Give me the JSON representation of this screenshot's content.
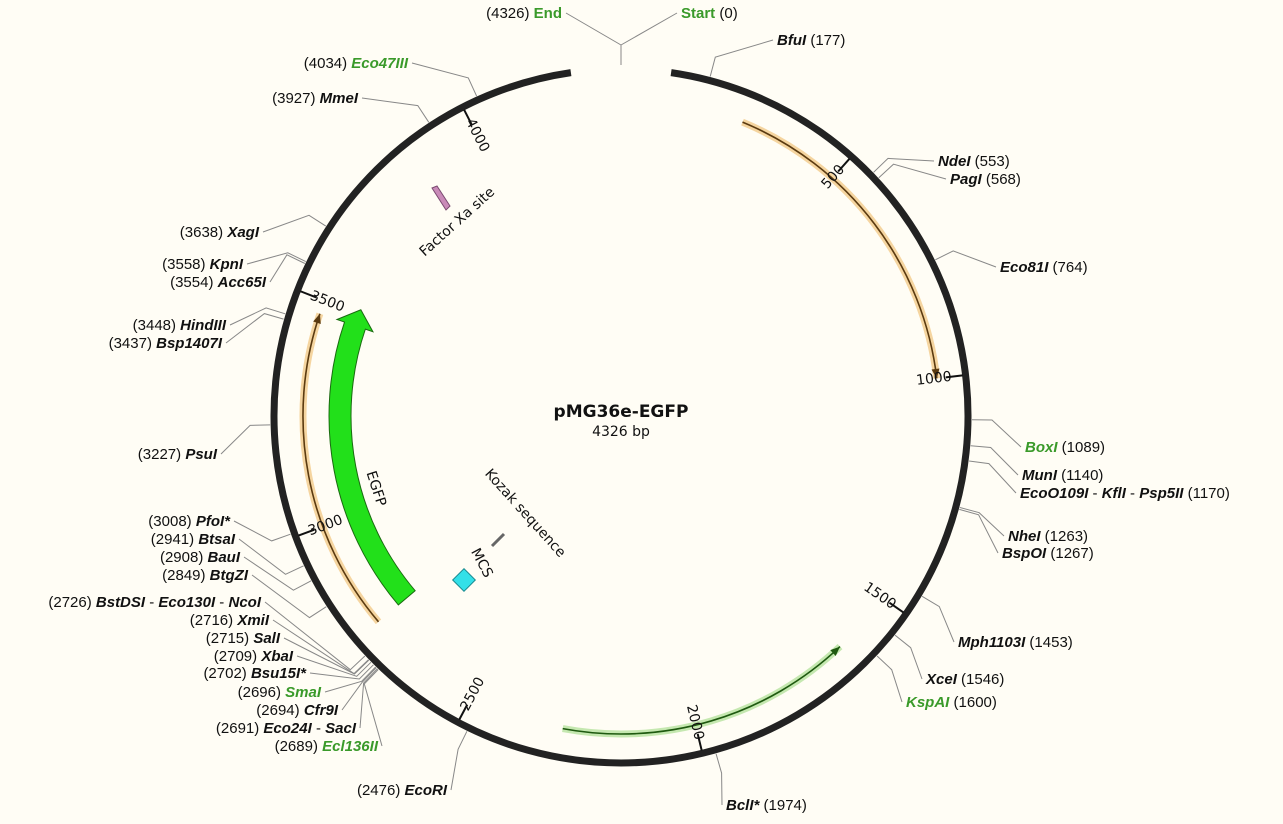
{
  "map": {
    "name": "pMG36e-EGFP",
    "length_label": "4326 bp",
    "length": 4326
  },
  "colors": {
    "backbone": "#222222",
    "green_label": "#3a9a2a",
    "orange_arrow": "#e8a43a",
    "light_green_arrow": "#8bd36b",
    "egfp": "#22e01a",
    "mcs": "#33e0e8",
    "factor_xa": "#c98ab8"
  },
  "ticks": [
    {
      "pos": 500,
      "label": "500"
    },
    {
      "pos": 1000,
      "label": "1000"
    },
    {
      "pos": 1500,
      "label": "1500"
    },
    {
      "pos": 2000,
      "label": "2000"
    },
    {
      "pos": 2500,
      "label": "2500"
    },
    {
      "pos": 3000,
      "label": "3000"
    },
    {
      "pos": 3500,
      "label": "3500"
    },
    {
      "pos": 4000,
      "label": "4000"
    }
  ],
  "sites": [
    {
      "bp": 4326,
      "pos_text": "(4326)",
      "parts": [
        {
          "t": "End",
          "g": true,
          "plain": true
        }
      ],
      "side": "L"
    },
    {
      "bp": 0,
      "pos_text": "(0)",
      "parts": [
        {
          "t": "Start",
          "g": true,
          "plain": true
        }
      ],
      "side": "R"
    },
    {
      "bp": 177,
      "pos_text": "(177)",
      "parts": [
        {
          "t": "BfuI"
        }
      ],
      "side": "R"
    },
    {
      "bp": 553,
      "pos_text": "(553)",
      "parts": [
        {
          "t": "NdeI"
        }
      ],
      "side": "R"
    },
    {
      "bp": 568,
      "pos_text": "(568)",
      "parts": [
        {
          "t": "PagI"
        }
      ],
      "side": "R"
    },
    {
      "bp": 764,
      "pos_text": "(764)",
      "parts": [
        {
          "t": "Eco81I"
        }
      ],
      "side": "R"
    },
    {
      "bp": 1089,
      "pos_text": "(1089)",
      "parts": [
        {
          "t": "BoxI",
          "g": true
        }
      ],
      "side": "R"
    },
    {
      "bp": 1140,
      "pos_text": "(1140)",
      "parts": [
        {
          "t": "MunI"
        }
      ],
      "side": "R"
    },
    {
      "bp": 1170,
      "pos_text": "(1170)",
      "parts": [
        {
          "t": "EcoO109I"
        },
        {
          "t": " - ",
          "sep": true
        },
        {
          "t": "KflI"
        },
        {
          "t": " - ",
          "sep": true
        },
        {
          "t": "Psp5II"
        }
      ],
      "side": "R"
    },
    {
      "bp": 1263,
      "pos_text": "(1263)",
      "parts": [
        {
          "t": "NheI"
        }
      ],
      "side": "R"
    },
    {
      "bp": 1267,
      "pos_text": "(1267)",
      "parts": [
        {
          "t": "BspOI"
        }
      ],
      "side": "R"
    },
    {
      "bp": 1453,
      "pos_text": "(1453)",
      "parts": [
        {
          "t": "Mph1103I"
        }
      ],
      "side": "R"
    },
    {
      "bp": 1546,
      "pos_text": "(1546)",
      "parts": [
        {
          "t": "XceI"
        }
      ],
      "side": "R"
    },
    {
      "bp": 1600,
      "pos_text": "(1600)",
      "parts": [
        {
          "t": "KspAI",
          "g": true
        }
      ],
      "side": "R"
    },
    {
      "bp": 1974,
      "pos_text": "(1974)",
      "parts": [
        {
          "t": "BclI*"
        }
      ],
      "side": "R"
    },
    {
      "bp": 2476,
      "pos_text": "(2476)",
      "parts": [
        {
          "t": "EcoRI"
        }
      ],
      "side": "L"
    },
    {
      "bp": 2689,
      "pos_text": "(2689)",
      "parts": [
        {
          "t": "Ecl136II",
          "g": true
        }
      ],
      "side": "L"
    },
    {
      "bp": 2691,
      "pos_text": "(2691)",
      "parts": [
        {
          "t": "Eco24I"
        },
        {
          "t": " - ",
          "sep": true
        },
        {
          "t": "SacI"
        }
      ],
      "side": "L"
    },
    {
      "bp": 2694,
      "pos_text": "(2694)",
      "parts": [
        {
          "t": "Cfr9I"
        }
      ],
      "side": "L"
    },
    {
      "bp": 2696,
      "pos_text": "(2696)",
      "parts": [
        {
          "t": "SmaI",
          "g": true
        }
      ],
      "side": "L"
    },
    {
      "bp": 2702,
      "pos_text": "(2702)",
      "parts": [
        {
          "t": "Bsu15I*"
        }
      ],
      "side": "L"
    },
    {
      "bp": 2709,
      "pos_text": "(2709)",
      "parts": [
        {
          "t": "XbaI"
        }
      ],
      "side": "L"
    },
    {
      "bp": 2715,
      "pos_text": "(2715)",
      "parts": [
        {
          "t": "SalI"
        }
      ],
      "side": "L"
    },
    {
      "bp": 2716,
      "pos_text": "(2716)",
      "parts": [
        {
          "t": "XmiI"
        }
      ],
      "side": "L"
    },
    {
      "bp": 2726,
      "pos_text": "(2726)",
      "parts": [
        {
          "t": "BstDSI"
        },
        {
          "t": " - ",
          "sep": true
        },
        {
          "t": "Eco130I"
        },
        {
          "t": " - ",
          "sep": true
        },
        {
          "t": "NcoI"
        }
      ],
      "side": "L"
    },
    {
      "bp": 2849,
      "pos_text": "(2849)",
      "parts": [
        {
          "t": "BtgZI"
        }
      ],
      "side": "L"
    },
    {
      "bp": 2908,
      "pos_text": "(2908)",
      "parts": [
        {
          "t": "BauI"
        }
      ],
      "side": "L"
    },
    {
      "bp": 2941,
      "pos_text": "(2941)",
      "parts": [
        {
          "t": "BtsaI"
        }
      ],
      "side": "L"
    },
    {
      "bp": 3008,
      "pos_text": "(3008)",
      "parts": [
        {
          "t": "PfoI*"
        }
      ],
      "side": "L"
    },
    {
      "bp": 3227,
      "pos_text": "(3227)",
      "parts": [
        {
          "t": "PsuI"
        }
      ],
      "side": "L"
    },
    {
      "bp": 3437,
      "pos_text": "(3437)",
      "parts": [
        {
          "t": "Bsp1407I"
        }
      ],
      "side": "L"
    },
    {
      "bp": 3448,
      "pos_text": "(3448)",
      "parts": [
        {
          "t": "HindIII"
        }
      ],
      "side": "L"
    },
    {
      "bp": 3554,
      "pos_text": "(3554)",
      "parts": [
        {
          "t": "Acc65I"
        }
      ],
      "side": "L"
    },
    {
      "bp": 3558,
      "pos_text": "(3558)",
      "parts": [
        {
          "t": "KpnI"
        }
      ],
      "side": "L"
    },
    {
      "bp": 3638,
      "pos_text": "(3638)",
      "parts": [
        {
          "t": "XagI"
        }
      ],
      "side": "L"
    },
    {
      "bp": 3927,
      "pos_text": "(3927)",
      "parts": [
        {
          "t": "MmeI"
        }
      ],
      "side": "L"
    },
    {
      "bp": 4034,
      "pos_text": "(4034)",
      "parts": [
        {
          "t": "Eco47III",
          "g": true
        }
      ],
      "side": "L"
    }
  ],
  "features": [
    {
      "name": "EGFP",
      "label": "EGFP"
    },
    {
      "name": "MCS",
      "label": "MCS"
    },
    {
      "name": "Kozak",
      "label": "Kozak sequence"
    },
    {
      "name": "FactorXa",
      "label": "Factor Xa site"
    }
  ]
}
